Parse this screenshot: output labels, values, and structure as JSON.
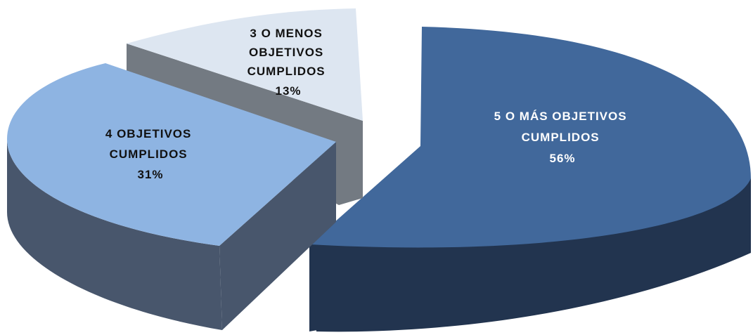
{
  "chart_data": {
    "type": "pie",
    "style": "3d-exploded",
    "slices": [
      {
        "line1": "5 O MÁS OBJETIVOS",
        "line2": "CUMPLIDOS",
        "line3": "",
        "pct_label": "56%",
        "value": 56,
        "color": "#41689b",
        "side_color": "#22344f",
        "label_color": "#ffffff"
      },
      {
        "line1": "3 O MENOS",
        "line2": "OBJETIVOS",
        "line3": "CUMPLIDOS",
        "pct_label": "13%",
        "value": 13,
        "color": "#dde6f1",
        "side_color": "#737a82",
        "label_color": "#111111"
      },
      {
        "line1": "4 OBJETIVOS",
        "line2": "CUMPLIDOS",
        "line3": "",
        "pct_label": "31%",
        "value": 31,
        "color": "#8eb4e2",
        "side_color": "#48566c",
        "label_color": "#111111"
      }
    ]
  }
}
